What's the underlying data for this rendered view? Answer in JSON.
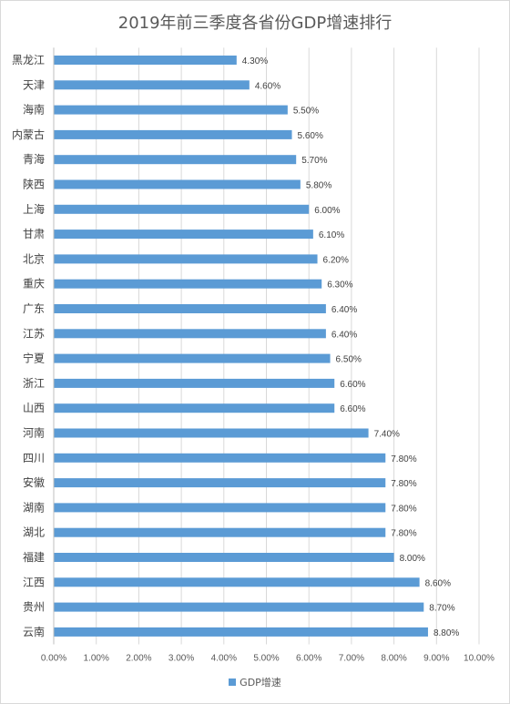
{
  "colors": {
    "bar": "#5B9BD5",
    "grid": "#d9d9d9",
    "text": "#595959"
  },
  "chart_data": {
    "type": "bar",
    "orientation": "horizontal",
    "title": "2019年前三季度各省份GDP增速排行",
    "categories": [
      "黑龙江",
      "天津",
      "海南",
      "内蒙古",
      "青海",
      "陕西",
      "上海",
      "甘肃",
      "北京",
      "重庆",
      "广东",
      "江苏",
      "宁夏",
      "浙江",
      "山西",
      "河南",
      "四川",
      "安徽",
      "湖南",
      "湖北",
      "福建",
      "江西",
      "贵州",
      "云南"
    ],
    "series": [
      {
        "name": "GDP增速",
        "values": [
          4.3,
          4.6,
          5.5,
          5.6,
          5.7,
          5.8,
          6.0,
          6.1,
          6.2,
          6.3,
          6.4,
          6.4,
          6.5,
          6.6,
          6.6,
          7.4,
          7.8,
          7.8,
          7.8,
          7.8,
          8.0,
          8.6,
          8.7,
          8.8
        ],
        "data_labels": [
          "4.30%",
          "4.60%",
          "5.50%",
          "5.60%",
          "5.70%",
          "5.80%",
          "6.00%",
          "6.10%",
          "6.20%",
          "6.30%",
          "6.40%",
          "6.40%",
          "6.50%",
          "6.60%",
          "6.60%",
          "7.40%",
          "7.80%",
          "7.80%",
          "7.80%",
          "7.80%",
          "8.00%",
          "8.60%",
          "8.70%",
          "8.80%"
        ]
      }
    ],
    "x_ticks": [
      "0.00%",
      "1.00%",
      "2.00%",
      "3.00%",
      "4.00%",
      "5.00%",
      "6.00%",
      "7.00%",
      "8.00%",
      "9.00%",
      "10.00%"
    ],
    "xlim": [
      0,
      10
    ],
    "grid": true,
    "legend_position": "bottom"
  }
}
